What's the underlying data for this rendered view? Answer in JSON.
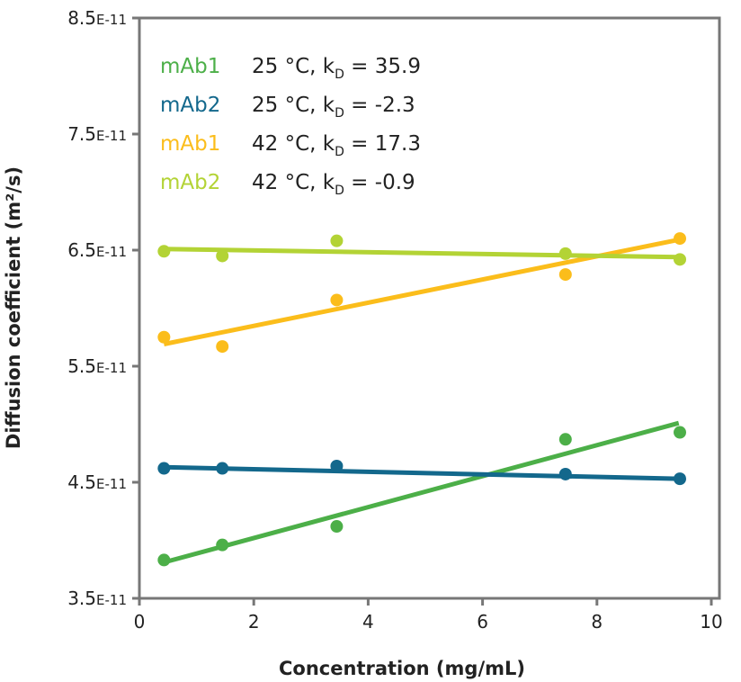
{
  "chart_data": {
    "type": "scatter",
    "xlabel": "Concentration (mg/mL)",
    "ylabel": "Diffusion coefficient (m²/s)",
    "xlim": [
      0,
      10
    ],
    "ylim": [
      3.5e-11,
      8.5e-11
    ],
    "xticks": [
      0,
      2,
      4,
      6,
      8,
      10
    ],
    "xtick_labels": [
      "0",
      "2",
      "4",
      "6",
      "8",
      "10"
    ],
    "yticks": [
      3.5e-11,
      4.5e-11,
      5.5e-11,
      6.5e-11,
      7.5e-11,
      8.5e-11
    ],
    "ytick_labels": [
      [
        "3.5",
        "E-11"
      ],
      [
        "4.5",
        "E-11"
      ],
      [
        "5.5",
        "E-11"
      ],
      [
        "6.5",
        "E-11"
      ],
      [
        "7.5",
        "E-11"
      ],
      [
        "8.5",
        "E-11"
      ]
    ],
    "grid": false,
    "legend_placement": "top-left",
    "series": [
      {
        "name": "mAb1",
        "condition": "25 °C, k",
        "sub": "D",
        "kd": "= 35.9",
        "color": "#4caf48",
        "x": [
          0.43,
          1.45,
          3.45,
          7.45,
          9.45
        ],
        "y": [
          3.83e-11,
          3.96e-11,
          4.12e-11,
          4.87e-11,
          4.93e-11
        ],
        "fit": {
          "x": [
            0.43,
            9.43
          ],
          "y": [
            3.81e-11,
            5.01e-11
          ]
        }
      },
      {
        "name": "mAb2",
        "condition": "25 °C, k",
        "sub": "D",
        "kd": "= -2.3",
        "color": "#13688c",
        "x": [
          0.43,
          1.45,
          3.45,
          7.45,
          9.45
        ],
        "y": [
          4.62e-11,
          4.62e-11,
          4.64e-11,
          4.57e-11,
          4.53e-11
        ],
        "fit": {
          "x": [
            0.43,
            9.43
          ],
          "y": [
            4.63e-11,
            4.53e-11
          ]
        }
      },
      {
        "name": "mAb1",
        "condition": "42 °C, k",
        "sub": "D",
        "kd": "= 17.3",
        "color": "#fbbd1b",
        "x": [
          0.43,
          1.45,
          3.45,
          7.45,
          9.45
        ],
        "y": [
          5.75e-11,
          5.67e-11,
          6.07e-11,
          6.29e-11,
          6.6e-11
        ],
        "fit": {
          "x": [
            0.43,
            9.43
          ],
          "y": [
            5.69e-11,
            6.59e-11
          ]
        }
      },
      {
        "name": "mAb2",
        "condition": "42 °C, k",
        "sub": "D",
        "kd": "= -0.9",
        "color": "#b3d335",
        "x": [
          0.43,
          1.45,
          3.45,
          7.45,
          9.45
        ],
        "y": [
          6.49e-11,
          6.45e-11,
          6.58e-11,
          6.47e-11,
          6.42e-11
        ],
        "fit": {
          "x": [
            0.43,
            9.43
          ],
          "y": [
            6.51e-11,
            6.44e-11
          ]
        }
      }
    ]
  }
}
